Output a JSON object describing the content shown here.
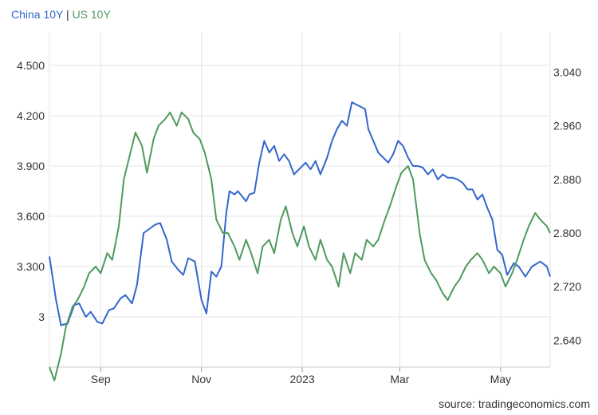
{
  "chart_data": {
    "type": "line",
    "title": "",
    "xlabel": "",
    "ylabel": "",
    "x_ticks": [
      {
        "label": "Sep",
        "date": "2022-09-01"
      },
      {
        "label": "Nov",
        "date": "2022-11-01"
      },
      {
        "label": "2023",
        "date": "2023-01-01"
      },
      {
        "label": "Mar",
        "date": "2023-03-01"
      },
      {
        "label": "May",
        "date": "2023-05-01"
      }
    ],
    "xlim": [
      "2022-08-01",
      "2023-05-31"
    ],
    "left_axis": {
      "ylim": [
        2.7,
        4.7
      ],
      "ticks": [
        "3",
        "3.300",
        "3.600",
        "3.900",
        "4.200",
        "4.500"
      ]
    },
    "right_axis": {
      "ylim": [
        2.6,
        3.1
      ],
      "ticks": [
        "2.640",
        "2.720",
        "2.800",
        "2.880",
        "2.960",
        "3.040"
      ]
    },
    "grid": true,
    "legend_position": "top-left",
    "series": [
      {
        "name": "China 10Y",
        "axis": "left",
        "color": "#3366cc",
        "points": [
          [
            "2022-08-01",
            3.36
          ],
          [
            "2022-08-05",
            3.1
          ],
          [
            "2022-08-08",
            2.95
          ],
          [
            "2022-08-12",
            2.96
          ],
          [
            "2022-08-16",
            3.07
          ],
          [
            "2022-08-19",
            3.08
          ],
          [
            "2022-08-23",
            3.0
          ],
          [
            "2022-08-26",
            3.03
          ],
          [
            "2022-08-30",
            2.97
          ],
          [
            "2022-09-02",
            2.96
          ],
          [
            "2022-09-06",
            3.04
          ],
          [
            "2022-09-09",
            3.05
          ],
          [
            "2022-09-13",
            3.11
          ],
          [
            "2022-09-16",
            3.13
          ],
          [
            "2022-09-20",
            3.08
          ],
          [
            "2022-09-23",
            3.19
          ],
          [
            "2022-09-27",
            3.5
          ],
          [
            "2022-10-04",
            3.55
          ],
          [
            "2022-10-07",
            3.56
          ],
          [
            "2022-10-11",
            3.46
          ],
          [
            "2022-10-14",
            3.33
          ],
          [
            "2022-10-18",
            3.28
          ],
          [
            "2022-10-21",
            3.25
          ],
          [
            "2022-10-24",
            3.35
          ],
          [
            "2022-10-28",
            3.33
          ],
          [
            "2022-11-01",
            3.1
          ],
          [
            "2022-11-04",
            3.02
          ],
          [
            "2022-11-07",
            3.27
          ],
          [
            "2022-11-10",
            3.24
          ],
          [
            "2022-11-13",
            3.3
          ],
          [
            "2022-11-16",
            3.62
          ],
          [
            "2022-11-18",
            3.75
          ],
          [
            "2022-11-21",
            3.73
          ],
          [
            "2022-11-23",
            3.75
          ],
          [
            "2022-11-28",
            3.69
          ],
          [
            "2022-11-30",
            3.73
          ],
          [
            "2022-12-03",
            3.74
          ],
          [
            "2022-12-06",
            3.92
          ],
          [
            "2022-12-09",
            4.05
          ],
          [
            "2022-12-12",
            3.98
          ],
          [
            "2022-12-15",
            4.02
          ],
          [
            "2022-12-18",
            3.93
          ],
          [
            "2022-12-21",
            3.97
          ],
          [
            "2022-12-24",
            3.93
          ],
          [
            "2022-12-27",
            3.85
          ],
          [
            "2023-01-03",
            3.92
          ],
          [
            "2023-01-06",
            3.88
          ],
          [
            "2023-01-09",
            3.93
          ],
          [
            "2023-01-12",
            3.85
          ],
          [
            "2023-01-16",
            3.95
          ],
          [
            "2023-01-19",
            4.05
          ],
          [
            "2023-01-22",
            4.12
          ],
          [
            "2023-01-25",
            4.17
          ],
          [
            "2023-01-28",
            4.14
          ],
          [
            "2023-01-31",
            4.28
          ],
          [
            "2023-02-04",
            4.26
          ],
          [
            "2023-02-08",
            4.24
          ],
          [
            "2023-02-10",
            4.12
          ],
          [
            "2023-02-13",
            4.05
          ],
          [
            "2023-02-16",
            3.98
          ],
          [
            "2023-02-19",
            3.95
          ],
          [
            "2023-02-22",
            3.92
          ],
          [
            "2023-02-25",
            3.97
          ],
          [
            "2023-02-28",
            4.05
          ],
          [
            "2023-03-03",
            4.02
          ],
          [
            "2023-03-06",
            3.95
          ],
          [
            "2023-03-09",
            3.9
          ],
          [
            "2023-03-12",
            3.9
          ],
          [
            "2023-03-15",
            3.89
          ],
          [
            "2023-03-18",
            3.85
          ],
          [
            "2023-03-21",
            3.88
          ],
          [
            "2023-03-24",
            3.82
          ],
          [
            "2023-03-27",
            3.85
          ],
          [
            "2023-03-30",
            3.83
          ],
          [
            "2023-04-02",
            3.83
          ],
          [
            "2023-04-05",
            3.82
          ],
          [
            "2023-04-08",
            3.8
          ],
          [
            "2023-04-11",
            3.76
          ],
          [
            "2023-04-14",
            3.76
          ],
          [
            "2023-04-17",
            3.7
          ],
          [
            "2023-04-20",
            3.73
          ],
          [
            "2023-04-23",
            3.65
          ],
          [
            "2023-04-26",
            3.58
          ],
          [
            "2023-04-29",
            3.4
          ],
          [
            "2023-05-02",
            3.37
          ],
          [
            "2023-05-05",
            3.25
          ],
          [
            "2023-05-09",
            3.32
          ],
          [
            "2023-05-12",
            3.3
          ],
          [
            "2023-05-16",
            3.24
          ],
          [
            "2023-05-20",
            3.3
          ],
          [
            "2023-05-25",
            3.33
          ],
          [
            "2023-05-29",
            3.3
          ],
          [
            "2023-05-31",
            3.24
          ]
        ]
      },
      {
        "name": "US 10Y",
        "axis": "right",
        "color": "#4e9a5f",
        "points": [
          [
            "2022-08-01",
            2.6
          ],
          [
            "2022-08-04",
            2.58
          ],
          [
            "2022-08-08",
            2.62
          ],
          [
            "2022-08-11",
            2.66
          ],
          [
            "2022-08-15",
            2.69
          ],
          [
            "2022-08-18",
            2.7
          ],
          [
            "2022-08-22",
            2.72
          ],
          [
            "2022-08-25",
            2.74
          ],
          [
            "2022-08-29",
            2.75
          ],
          [
            "2022-09-01",
            2.74
          ],
          [
            "2022-09-05",
            2.77
          ],
          [
            "2022-09-08",
            2.76
          ],
          [
            "2022-09-12",
            2.81
          ],
          [
            "2022-09-15",
            2.88
          ],
          [
            "2022-09-19",
            2.92
          ],
          [
            "2022-09-22",
            2.95
          ],
          [
            "2022-09-26",
            2.93
          ],
          [
            "2022-09-29",
            2.89
          ],
          [
            "2022-10-03",
            2.94
          ],
          [
            "2022-10-06",
            2.96
          ],
          [
            "2022-10-10",
            2.97
          ],
          [
            "2022-10-13",
            2.98
          ],
          [
            "2022-10-17",
            2.96
          ],
          [
            "2022-10-20",
            2.98
          ],
          [
            "2022-10-24",
            2.97
          ],
          [
            "2022-10-27",
            2.95
          ],
          [
            "2022-10-31",
            2.94
          ],
          [
            "2022-11-03",
            2.92
          ],
          [
            "2022-11-07",
            2.88
          ],
          [
            "2022-11-10",
            2.82
          ],
          [
            "2022-11-14",
            2.8
          ],
          [
            "2022-11-17",
            2.8
          ],
          [
            "2022-11-21",
            2.78
          ],
          [
            "2022-11-24",
            2.76
          ],
          [
            "2022-11-28",
            2.79
          ],
          [
            "2022-12-01",
            2.77
          ],
          [
            "2022-12-05",
            2.74
          ],
          [
            "2022-12-08",
            2.78
          ],
          [
            "2022-12-12",
            2.79
          ],
          [
            "2022-12-15",
            2.77
          ],
          [
            "2022-12-19",
            2.82
          ],
          [
            "2022-12-22",
            2.84
          ],
          [
            "2022-12-26",
            2.8
          ],
          [
            "2022-12-29",
            2.78
          ],
          [
            "2023-01-02",
            2.81
          ],
          [
            "2023-01-05",
            2.78
          ],
          [
            "2023-01-09",
            2.76
          ],
          [
            "2023-01-12",
            2.79
          ],
          [
            "2023-01-16",
            2.76
          ],
          [
            "2023-01-19",
            2.75
          ],
          [
            "2023-01-23",
            2.72
          ],
          [
            "2023-01-26",
            2.77
          ],
          [
            "2023-01-30",
            2.74
          ],
          [
            "2023-02-02",
            2.77
          ],
          [
            "2023-02-06",
            2.76
          ],
          [
            "2023-02-09",
            2.79
          ],
          [
            "2023-02-13",
            2.78
          ],
          [
            "2023-02-16",
            2.79
          ],
          [
            "2023-02-20",
            2.82
          ],
          [
            "2023-02-23",
            2.84
          ],
          [
            "2023-02-27",
            2.87
          ],
          [
            "2023-03-02",
            2.89
          ],
          [
            "2023-03-06",
            2.9
          ],
          [
            "2023-03-09",
            2.88
          ],
          [
            "2023-03-13",
            2.8
          ],
          [
            "2023-03-16",
            2.76
          ],
          [
            "2023-03-20",
            2.74
          ],
          [
            "2023-03-23",
            2.73
          ],
          [
            "2023-03-27",
            2.71
          ],
          [
            "2023-03-30",
            2.7
          ],
          [
            "2023-04-03",
            2.72
          ],
          [
            "2023-04-06",
            2.73
          ],
          [
            "2023-04-10",
            2.75
          ],
          [
            "2023-04-13",
            2.76
          ],
          [
            "2023-04-17",
            2.77
          ],
          [
            "2023-04-20",
            2.76
          ],
          [
            "2023-04-24",
            2.74
          ],
          [
            "2023-04-27",
            2.75
          ],
          [
            "2023-05-01",
            2.74
          ],
          [
            "2023-05-04",
            2.72
          ],
          [
            "2023-05-08",
            2.74
          ],
          [
            "2023-05-11",
            2.76
          ],
          [
            "2023-05-15",
            2.79
          ],
          [
            "2023-05-18",
            2.81
          ],
          [
            "2023-05-22",
            2.83
          ],
          [
            "2023-05-25",
            2.82
          ],
          [
            "2023-05-29",
            2.81
          ],
          [
            "2023-05-31",
            2.8
          ]
        ]
      }
    ]
  },
  "legend": {
    "china_label": "China 10Y",
    "separator": " | ",
    "us_label": "US 10Y"
  },
  "source": "source: tradingeconomics.com"
}
